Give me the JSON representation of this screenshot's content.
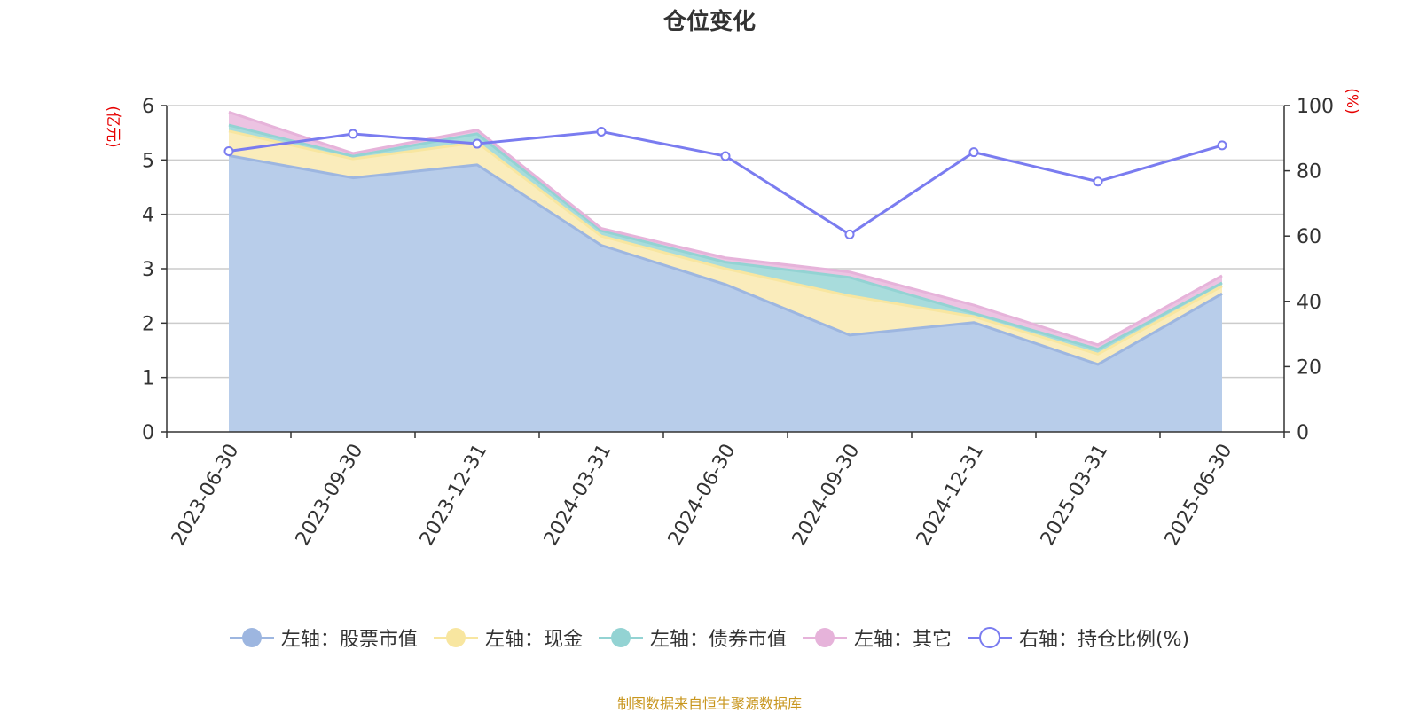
{
  "chart_data": {
    "type": "area",
    "title": "仓位变化",
    "x": [
      "2023-06-30",
      "2023-09-30",
      "2023-12-31",
      "2024-03-31",
      "2024-06-30",
      "2024-09-30",
      "2024-12-31",
      "2025-03-31",
      "2025-06-30"
    ],
    "left_axis": {
      "label": "(亿元)",
      "ylim": [
        0,
        6
      ],
      "ticks": [
        0,
        1,
        2,
        3,
        4,
        5,
        6
      ]
    },
    "right_axis": {
      "label": "(%)",
      "ylim": [
        0,
        100
      ],
      "ticks": [
        0,
        20,
        40,
        60,
        80,
        100
      ]
    },
    "series": [
      {
        "name": "左轴：股票市值",
        "axis": "left",
        "stack": true,
        "color": "#9db6e0",
        "fill": "#b8cdea",
        "values": [
          5.08,
          4.67,
          4.91,
          3.43,
          2.71,
          1.78,
          2.01,
          1.24,
          2.54
        ]
      },
      {
        "name": "左轴：现金",
        "axis": "left",
        "stack": true,
        "color": "#f8e6a0",
        "fill": "#faecbb",
        "values": [
          0.45,
          0.35,
          0.41,
          0.17,
          0.29,
          0.72,
          0.11,
          0.19,
          0.14
        ]
      },
      {
        "name": "左轴：债券市值",
        "axis": "left",
        "stack": true,
        "color": "#93d3d3",
        "fill": "#a8dcdc",
        "values": [
          0.11,
          0.05,
          0.16,
          0.1,
          0.12,
          0.34,
          0.06,
          0.09,
          0.06
        ]
      },
      {
        "name": "左轴：其它",
        "axis": "left",
        "stack": true,
        "color": "#e6b3da",
        "fill": "#ecc3e2",
        "values": [
          0.24,
          0.05,
          0.07,
          0.04,
          0.08,
          0.1,
          0.15,
          0.08,
          0.13
        ]
      },
      {
        "name": "右轴：持仓比例(%)",
        "axis": "right",
        "stack": false,
        "color": "#7a7cf0",
        "values": [
          86.0,
          91.3,
          88.3,
          92.0,
          84.5,
          60.5,
          85.7,
          76.7,
          87.8
        ]
      }
    ],
    "grid": true,
    "legend_position": "bottom"
  },
  "source": "制图数据来自恒生聚源数据库"
}
